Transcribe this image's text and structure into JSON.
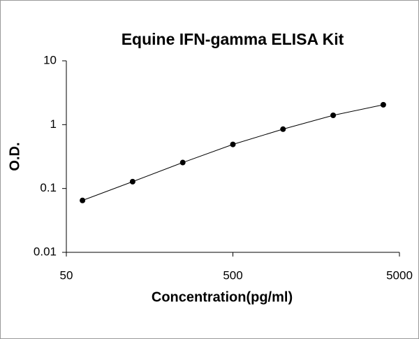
{
  "chart_data": {
    "type": "line",
    "title": "Equine IFN-gamma ELISA Kit",
    "x_label": "Concentration(pg/ml)",
    "y_label": "O.D.",
    "x": [
      62.5,
      125,
      250,
      500,
      1000,
      2000,
      4000
    ],
    "values": [
      0.065,
      0.128,
      0.255,
      0.49,
      0.85,
      1.4,
      2.05
    ],
    "color": "#000000",
    "xlim": [
      50,
      5000
    ],
    "xticks": [
      50,
      500,
      5000
    ],
    "xscale": "log",
    "ylim": [
      0.01,
      10
    ],
    "yticks": [
      0.01,
      0.1,
      1,
      10
    ],
    "yscale": "log",
    "grid": false
  }
}
